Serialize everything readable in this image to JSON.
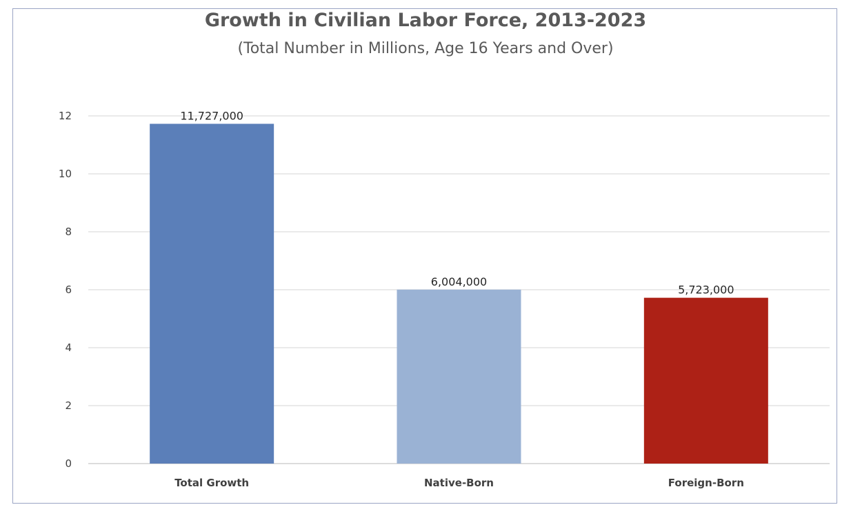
{
  "chart_data": {
    "type": "bar",
    "title": "Growth in Civilian Labor Force, 2013-2023",
    "subtitle": "(Total Number in Millions, Age 16 Years and Over)",
    "xlabel": "",
    "ylabel": "",
    "categories": [
      "Total Growth",
      "Native-Born",
      "Foreign-Born"
    ],
    "values": [
      11.727,
      6.004,
      5.723
    ],
    "data_labels": [
      "11,727,000",
      "6,004,000",
      "5,723,000"
    ],
    "colors": [
      "#5b7fb9",
      "#9ab2d4",
      "#ad2116"
    ],
    "ylim": [
      0,
      12
    ],
    "yticks": [
      "0",
      "2",
      "4",
      "6",
      "8",
      "10",
      "12"
    ],
    "grid": true,
    "legend": "none"
  }
}
